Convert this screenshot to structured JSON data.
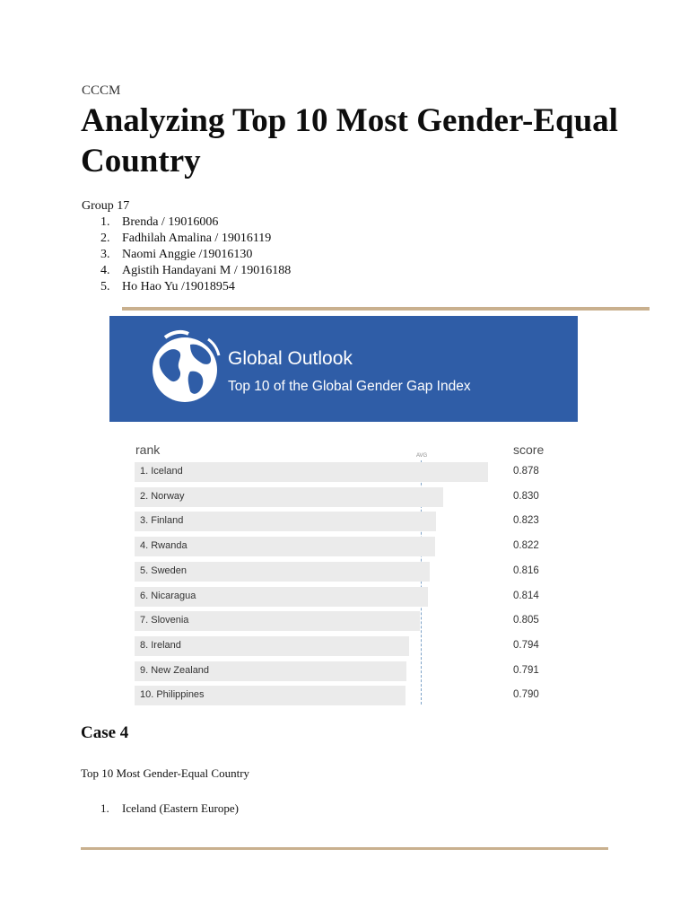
{
  "course": "CCCM",
  "title": "Analyzing Top 10 Most Gender-Equal Country",
  "group": {
    "label": "Group 17",
    "members": [
      {
        "num": "1.",
        "text": "Brenda / 19016006"
      },
      {
        "num": "2.",
        "text": "Fadhilah Amalina / 19016119"
      },
      {
        "num": "3.",
        "text": "Naomi Anggie /19016130"
      },
      {
        "num": "4.",
        "text": "Agistih Handayani M / 19016188"
      },
      {
        "num": "5.",
        "text": "Ho Hao Yu /19018954"
      }
    ]
  },
  "figure": {
    "heading": "Global Outlook",
    "subheading": "Top 10 of the Global Gender Gap Index",
    "banner_color": "#2f5da7",
    "icon": "globe-icon"
  },
  "chart_data": {
    "type": "bar",
    "header_rank": "rank",
    "header_score": "score",
    "avg_label": "AVG",
    "rows": [
      {
        "label": "1. Iceland",
        "value": 0.878,
        "display": "0.878"
      },
      {
        "label": "2. Norway",
        "value": 0.83,
        "display": "0.830"
      },
      {
        "label": "3. Finland",
        "value": 0.823,
        "display": "0.823"
      },
      {
        "label": "4. Rwanda",
        "value": 0.822,
        "display": "0.822"
      },
      {
        "label": "5. Sweden",
        "value": 0.816,
        "display": "0.816"
      },
      {
        "label": "6. Nicaragua",
        "value": 0.814,
        "display": "0.814"
      },
      {
        "label": "7. Slovenia",
        "value": 0.805,
        "display": "0.805"
      },
      {
        "label": "8. Ireland",
        "value": 0.794,
        "display": "0.794"
      },
      {
        "label": "9. New Zealand",
        "value": 0.791,
        "display": "0.791"
      },
      {
        "label": "10. Philippines",
        "value": 0.79,
        "display": "0.790"
      }
    ]
  },
  "case": {
    "heading": "Case 4",
    "paragraph": "Top 10 Most Gender-Equal Country",
    "items": [
      {
        "num": "1.",
        "text": "Iceland (Eastern Europe)"
      }
    ]
  }
}
